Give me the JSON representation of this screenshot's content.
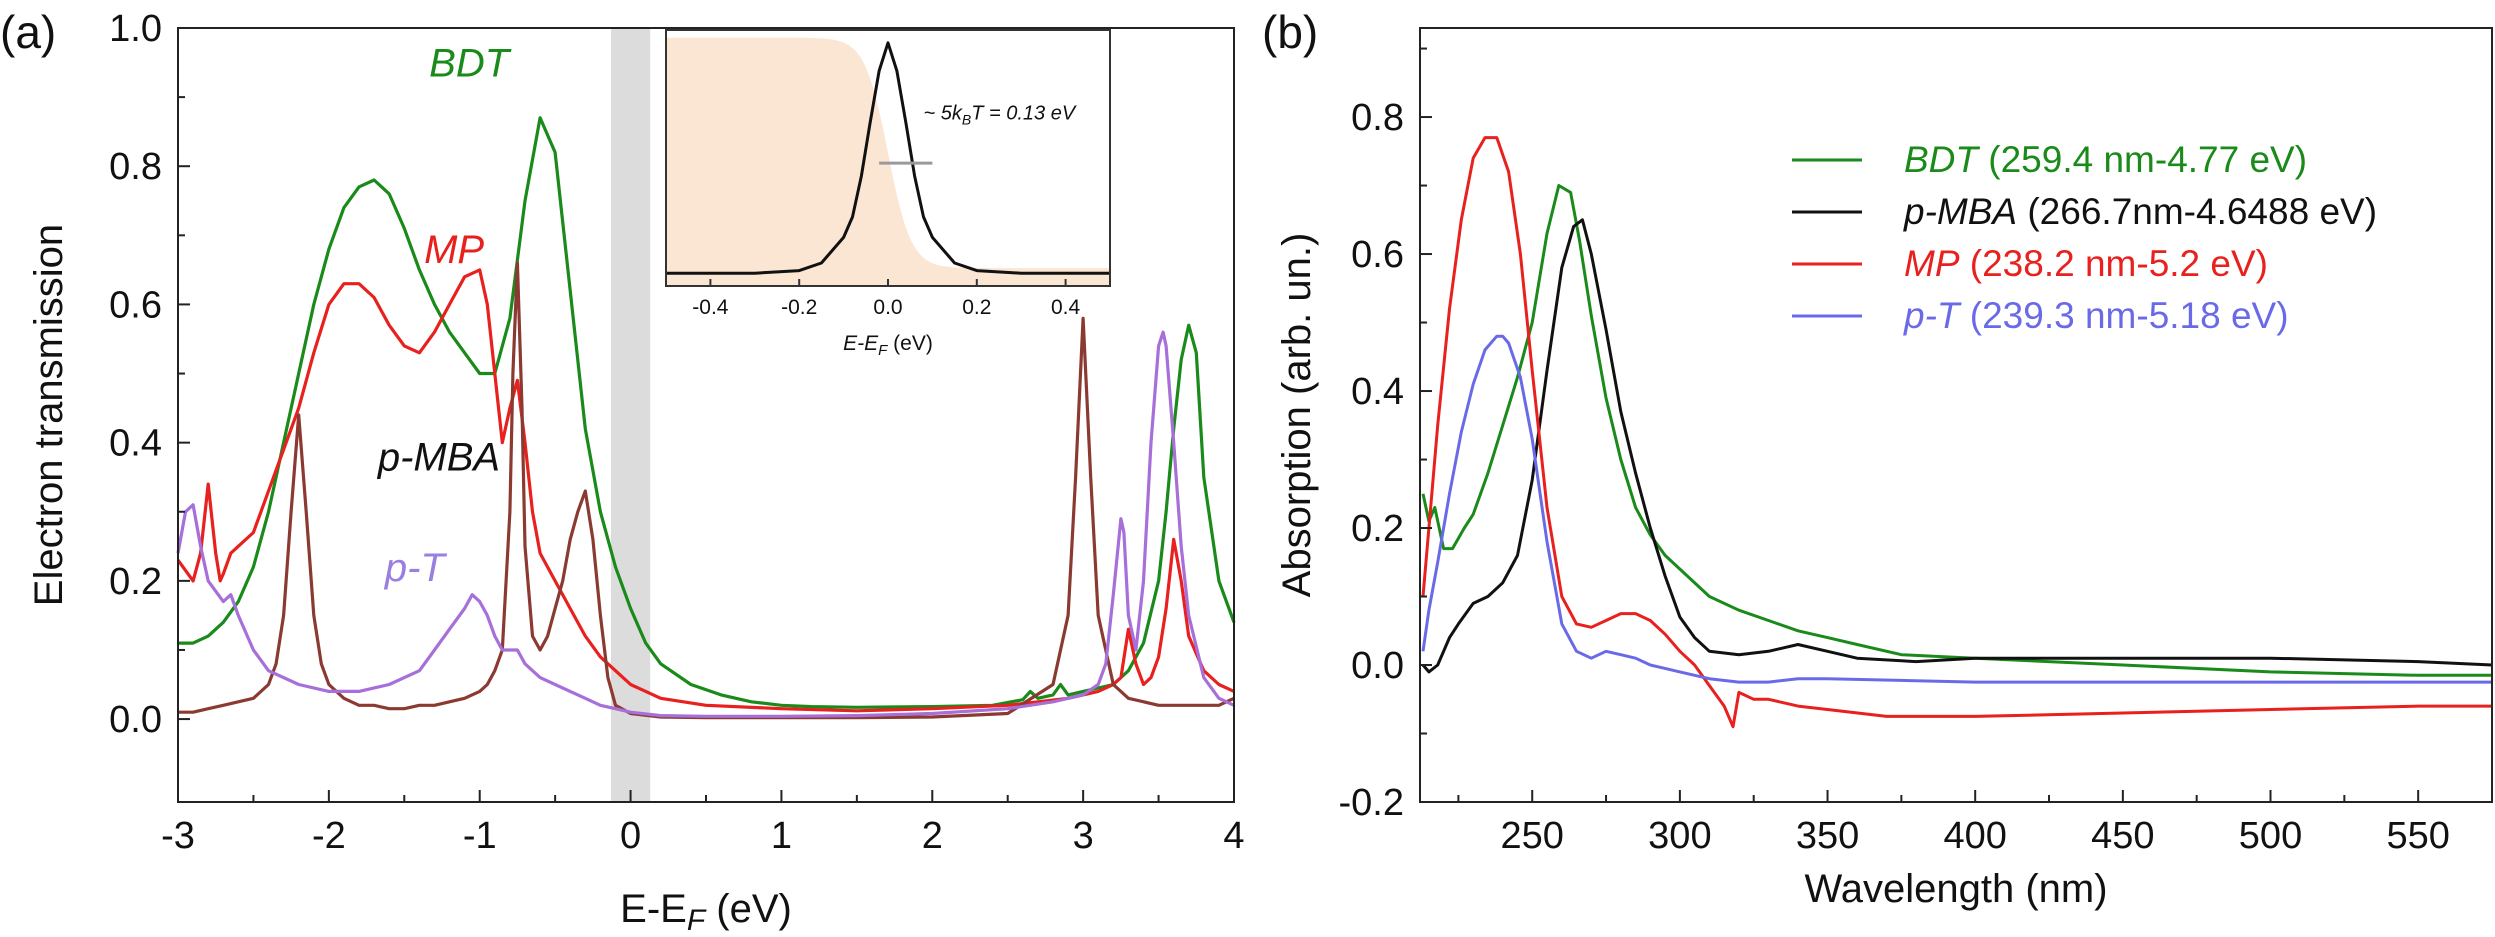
{
  "chart_data": [
    {
      "panel": "(a)",
      "type": "line",
      "xlabel": "E-E",
      "xlabel_sub": "F",
      "xlabel_unit": " (eV)",
      "ylabel": "Electron transmission",
      "xlim": [
        -3,
        4
      ],
      "ylim": [
        -0.12,
        1.0
      ],
      "xticks": [
        "-3",
        "-2",
        "-1",
        "0",
        "1",
        "2",
        "3",
        "4"
      ],
      "yticks": [
        "0.0",
        "0.2",
        "0.4",
        "0.6",
        "0.8",
        "1.0"
      ],
      "shaded_band": [
        -0.13,
        0.13
      ],
      "curve_labels": [
        {
          "text": "BDT",
          "series": "BDT",
          "color": "#1a8a1a",
          "italic": true,
          "at": [
            -1.07,
            0.93
          ]
        },
        {
          "text": "MP",
          "series": "MP",
          "color": "#e8201e",
          "italic": true,
          "at": [
            -1.17,
            0.66
          ]
        },
        {
          "text": "p-MBA",
          "series": "p-MBA",
          "color": "#111111",
          "italic": true,
          "at": [
            -1.27,
            0.36
          ]
        },
        {
          "text": "p-T",
          "series": "p-T",
          "color": "#9a7ee0",
          "italic": true,
          "at": [
            -1.43,
            0.2
          ]
        }
      ],
      "series": [
        {
          "name": "BDT",
          "color": "#1a8a1a",
          "x": [
            -3,
            -2.9,
            -2.8,
            -2.7,
            -2.6,
            -2.5,
            -2.4,
            -2.3,
            -2.2,
            -2.1,
            -2,
            -1.9,
            -1.8,
            -1.7,
            -1.6,
            -1.5,
            -1.4,
            -1.3,
            -1.2,
            -1.1,
            -1,
            -0.9,
            -0.8,
            -0.7,
            -0.6,
            -0.5,
            -0.4,
            -0.3,
            -0.2,
            -0.1,
            0,
            0.1,
            0.2,
            0.4,
            0.6,
            0.8,
            1,
            1.2,
            1.5,
            2,
            2.4,
            2.6,
            2.65,
            2.7,
            2.8,
            2.85,
            2.9,
            3,
            3.1,
            3.2,
            3.3,
            3.4,
            3.5,
            3.55,
            3.6,
            3.65,
            3.7,
            3.75,
            3.8,
            3.9,
            4
          ],
          "y": [
            0.11,
            0.11,
            0.12,
            0.14,
            0.17,
            0.22,
            0.3,
            0.4,
            0.5,
            0.6,
            0.68,
            0.74,
            0.77,
            0.78,
            0.76,
            0.71,
            0.65,
            0.6,
            0.56,
            0.53,
            0.5,
            0.5,
            0.58,
            0.75,
            0.87,
            0.82,
            0.62,
            0.42,
            0.3,
            0.22,
            0.16,
            0.11,
            0.08,
            0.05,
            0.035,
            0.025,
            0.02,
            0.018,
            0.017,
            0.018,
            0.02,
            0.028,
            0.04,
            0.03,
            0.035,
            0.05,
            0.035,
            0.04,
            0.045,
            0.05,
            0.07,
            0.11,
            0.2,
            0.3,
            0.42,
            0.52,
            0.57,
            0.53,
            0.35,
            0.2,
            0.14
          ]
        },
        {
          "name": "MP",
          "color": "#e8201e",
          "x": [
            -3,
            -2.9,
            -2.85,
            -2.8,
            -2.78,
            -2.75,
            -2.72,
            -2.7,
            -2.65,
            -2.6,
            -2.5,
            -2.4,
            -2.3,
            -2.2,
            -2.1,
            -2,
            -1.9,
            -1.8,
            -1.7,
            -1.6,
            -1.5,
            -1.4,
            -1.3,
            -1.2,
            -1.1,
            -1,
            -0.95,
            -0.9,
            -0.85,
            -0.8,
            -0.75,
            -0.7,
            -0.65,
            -0.6,
            -0.5,
            -0.4,
            -0.3,
            -0.2,
            -0.1,
            0,
            0.2,
            0.5,
            1,
            1.5,
            2,
            2.5,
            2.9,
            3,
            3.1,
            3.2,
            3.25,
            3.3,
            3.35,
            3.4,
            3.45,
            3.5,
            3.55,
            3.6,
            3.65,
            3.7,
            3.8,
            3.9,
            4
          ],
          "y": [
            0.23,
            0.2,
            0.24,
            0.34,
            0.3,
            0.24,
            0.2,
            0.21,
            0.24,
            0.25,
            0.27,
            0.33,
            0.39,
            0.45,
            0.53,
            0.6,
            0.63,
            0.63,
            0.61,
            0.57,
            0.54,
            0.53,
            0.56,
            0.6,
            0.64,
            0.65,
            0.6,
            0.5,
            0.4,
            0.45,
            0.49,
            0.4,
            0.3,
            0.24,
            0.2,
            0.16,
            0.12,
            0.09,
            0.07,
            0.05,
            0.03,
            0.02,
            0.015,
            0.012,
            0.015,
            0.02,
            0.03,
            0.035,
            0.04,
            0.05,
            0.06,
            0.13,
            0.08,
            0.05,
            0.06,
            0.09,
            0.16,
            0.26,
            0.2,
            0.12,
            0.07,
            0.05,
            0.04
          ]
        },
        {
          "name": "p-MBA",
          "color": "#8b3a32",
          "x": [
            -3,
            -2.9,
            -2.8,
            -2.7,
            -2.6,
            -2.5,
            -2.4,
            -2.35,
            -2.3,
            -2.25,
            -2.2,
            -2.15,
            -2.1,
            -2.05,
            -2,
            -1.9,
            -1.8,
            -1.7,
            -1.6,
            -1.5,
            -1.4,
            -1.3,
            -1.2,
            -1.1,
            -1,
            -0.95,
            -0.9,
            -0.85,
            -0.8,
            -0.78,
            -0.75,
            -0.72,
            -0.7,
            -0.65,
            -0.6,
            -0.55,
            -0.5,
            -0.45,
            -0.4,
            -0.35,
            -0.3,
            -0.25,
            -0.2,
            -0.15,
            -0.1,
            0,
            0.2,
            0.5,
            1,
            1.5,
            2,
            2.5,
            2.8,
            2.9,
            2.95,
            3,
            3.05,
            3.1,
            3.2,
            3.3,
            3.5,
            3.8,
            3.9,
            4
          ],
          "y": [
            0.01,
            0.01,
            0.015,
            0.02,
            0.025,
            0.03,
            0.05,
            0.08,
            0.15,
            0.3,
            0.44,
            0.3,
            0.15,
            0.08,
            0.05,
            0.03,
            0.02,
            0.02,
            0.015,
            0.015,
            0.02,
            0.02,
            0.025,
            0.03,
            0.04,
            0.05,
            0.07,
            0.1,
            0.3,
            0.5,
            0.66,
            0.45,
            0.25,
            0.12,
            0.1,
            0.12,
            0.16,
            0.2,
            0.26,
            0.3,
            0.33,
            0.26,
            0.15,
            0.06,
            0.02,
            0.008,
            0.003,
            0.002,
            0.002,
            0.002,
            0.003,
            0.008,
            0.05,
            0.15,
            0.35,
            0.58,
            0.35,
            0.15,
            0.05,
            0.03,
            0.02,
            0.02,
            0.02,
            0.03
          ]
        },
        {
          "name": "p-T",
          "color": "#a66fd9",
          "x": [
            -3,
            -2.95,
            -2.9,
            -2.85,
            -2.8,
            -2.7,
            -2.65,
            -2.6,
            -2.5,
            -2.4,
            -2.2,
            -2,
            -1.8,
            -1.6,
            -1.4,
            -1.3,
            -1.2,
            -1.1,
            -1.05,
            -1,
            -0.95,
            -0.9,
            -0.85,
            -0.8,
            -0.75,
            -0.7,
            -0.6,
            -0.5,
            -0.4,
            -0.3,
            -0.2,
            -0.1,
            0,
            0.2,
            0.5,
            1,
            1.5,
            2,
            2.5,
            2.8,
            3,
            3.1,
            3.15,
            3.2,
            3.25,
            3.27,
            3.3,
            3.35,
            3.4,
            3.45,
            3.5,
            3.53,
            3.55,
            3.6,
            3.65,
            3.7,
            3.8,
            3.9,
            4
          ],
          "y": [
            0.24,
            0.3,
            0.31,
            0.25,
            0.2,
            0.17,
            0.18,
            0.15,
            0.1,
            0.07,
            0.05,
            0.04,
            0.04,
            0.05,
            0.07,
            0.1,
            0.13,
            0.16,
            0.18,
            0.17,
            0.15,
            0.12,
            0.1,
            0.1,
            0.1,
            0.08,
            0.06,
            0.05,
            0.04,
            0.03,
            0.02,
            0.015,
            0.01,
            0.005,
            0.004,
            0.004,
            0.005,
            0.008,
            0.015,
            0.025,
            0.035,
            0.05,
            0.08,
            0.18,
            0.29,
            0.27,
            0.15,
            0.1,
            0.2,
            0.4,
            0.54,
            0.56,
            0.54,
            0.4,
            0.25,
            0.15,
            0.06,
            0.03,
            0.02
          ]
        }
      ]
    },
    {
      "panel": "inset",
      "type": "line",
      "xlabel": "E-E",
      "xlabel_sub": "F",
      "xlabel_unit": " (eV)",
      "xlim": [
        -0.5,
        0.5
      ],
      "ylim": [
        0,
        1
      ],
      "xticks": [
        "-0.4",
        "-0.2",
        "0.0",
        "0.2",
        "0.4"
      ],
      "annotation": "~ 5k",
      "annotation_sub": "B",
      "annotation_rest": "T = 0.13 eV",
      "fermi_fill_color": "#fbe6d4",
      "series": [
        {
          "name": "peak",
          "color": "#111111",
          "x": [
            -0.5,
            -0.3,
            -0.2,
            -0.15,
            -0.1,
            -0.08,
            -0.06,
            -0.04,
            -0.02,
            0,
            0.02,
            0.04,
            0.06,
            0.08,
            0.1,
            0.15,
            0.2,
            0.3,
            0.5
          ],
          "y": [
            0.05,
            0.05,
            0.06,
            0.09,
            0.19,
            0.27,
            0.43,
            0.64,
            0.84,
            0.95,
            0.84,
            0.64,
            0.43,
            0.27,
            0.19,
            0.09,
            0.06,
            0.05,
            0.05
          ]
        }
      ]
    },
    {
      "panel": "(b)",
      "type": "line",
      "xlabel": "Wavelength (nm)",
      "ylabel": "Absorption (arb. un.)",
      "xlim": [
        212,
        575
      ],
      "ylim": [
        -0.2,
        0.93
      ],
      "xticks": [
        "250",
        "300",
        "350",
        "400",
        "450",
        "500",
        "550"
      ],
      "yticks": [
        "-0.2",
        "0.0",
        "0.2",
        "0.4",
        "0.6",
        "0.8"
      ],
      "legend_position": "top-right",
      "series": [
        {
          "name": "BDT",
          "legend_rest": " (259.4 nm-4.77 eV)",
          "color": "#1a8a1a",
          "x": [
            213,
            215,
            217,
            220,
            223,
            227,
            230,
            235,
            240,
            245,
            250,
            255,
            259,
            263,
            266,
            270,
            275,
            280,
            285,
            290,
            295,
            300,
            310,
            320,
            330,
            340,
            350,
            360,
            375,
            400,
            450,
            500,
            550,
            575
          ],
          "y": [
            0.25,
            0.21,
            0.23,
            0.17,
            0.17,
            0.2,
            0.22,
            0.28,
            0.35,
            0.42,
            0.5,
            0.63,
            0.7,
            0.69,
            0.62,
            0.51,
            0.39,
            0.3,
            0.23,
            0.19,
            0.16,
            0.14,
            0.1,
            0.08,
            0.065,
            0.05,
            0.04,
            0.03,
            0.015,
            0.01,
            0.0,
            -0.01,
            -0.015,
            -0.015
          ]
        },
        {
          "name": "p-MBA",
          "legend_rest": " (266.7nm-4.6488 eV)",
          "color": "#111111",
          "x": [
            213,
            215,
            218,
            222,
            225,
            230,
            235,
            240,
            245,
            250,
            255,
            260,
            264,
            267,
            270,
            275,
            280,
            285,
            290,
            295,
            300,
            305,
            310,
            320,
            330,
            340,
            350,
            360,
            380,
            400,
            450,
            500,
            550,
            575
          ],
          "y": [
            0.0,
            -0.01,
            0.0,
            0.04,
            0.06,
            0.09,
            0.1,
            0.12,
            0.16,
            0.27,
            0.43,
            0.58,
            0.64,
            0.65,
            0.6,
            0.49,
            0.37,
            0.28,
            0.2,
            0.13,
            0.07,
            0.04,
            0.02,
            0.015,
            0.02,
            0.03,
            0.02,
            0.01,
            0.005,
            0.01,
            0.01,
            0.01,
            0.005,
            0.0
          ]
        },
        {
          "name": "MP",
          "legend_rest": " (238.2 nm-5.2 eV)",
          "color": "#e8201e",
          "x": [
            213,
            215,
            218,
            222,
            226,
            230,
            234,
            238,
            242,
            246,
            250,
            255,
            260,
            265,
            270,
            275,
            280,
            285,
            290,
            295,
            300,
            305,
            310,
            315,
            318,
            320,
            325,
            330,
            340,
            350,
            370,
            400,
            450,
            500,
            550,
            575
          ],
          "y": [
            0.1,
            0.2,
            0.35,
            0.52,
            0.65,
            0.74,
            0.77,
            0.77,
            0.72,
            0.6,
            0.43,
            0.23,
            0.1,
            0.06,
            0.055,
            0.065,
            0.075,
            0.075,
            0.065,
            0.045,
            0.02,
            0.0,
            -0.03,
            -0.06,
            -0.09,
            -0.04,
            -0.05,
            -0.05,
            -0.06,
            -0.065,
            -0.075,
            -0.075,
            -0.07,
            -0.065,
            -0.06,
            -0.06
          ]
        },
        {
          "name": "p-T",
          "legend_rest": " (239.3 nm-5.18 eV)",
          "color": "#6a6ae8",
          "x": [
            213,
            215,
            218,
            222,
            226,
            230,
            234,
            238,
            240,
            242,
            246,
            250,
            255,
            260,
            265,
            270,
            275,
            280,
            285,
            290,
            295,
            300,
            310,
            320,
            330,
            340,
            350,
            400,
            450,
            500,
            550,
            575
          ],
          "y": [
            0.02,
            0.08,
            0.15,
            0.25,
            0.34,
            0.41,
            0.46,
            0.48,
            0.48,
            0.47,
            0.42,
            0.33,
            0.18,
            0.06,
            0.02,
            0.01,
            0.02,
            0.015,
            0.01,
            0.0,
            -0.005,
            -0.01,
            -0.02,
            -0.025,
            -0.025,
            -0.02,
            -0.02,
            -0.025,
            -0.025,
            -0.025,
            -0.025,
            -0.025
          ]
        }
      ]
    }
  ]
}
